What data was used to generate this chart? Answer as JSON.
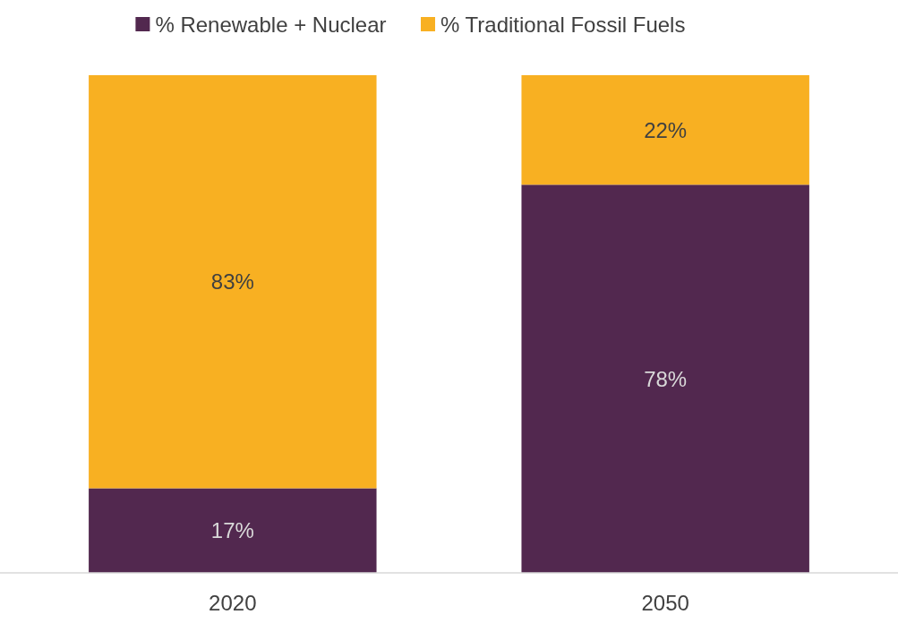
{
  "chart_data": {
    "type": "bar",
    "stacked": true,
    "categories": [
      "2020",
      "2050"
    ],
    "series": [
      {
        "name": "% Renewable + Nuclear",
        "color": "#52284f",
        "values": [
          17,
          78
        ],
        "value_labels": [
          "17%",
          "78%"
        ]
      },
      {
        "name": "% Traditional Fossil Fuels",
        "color": "#f8b022",
        "values": [
          83,
          22
        ],
        "value_labels": [
          "83%",
          "22%"
        ]
      }
    ],
    "legend": "top"
  }
}
